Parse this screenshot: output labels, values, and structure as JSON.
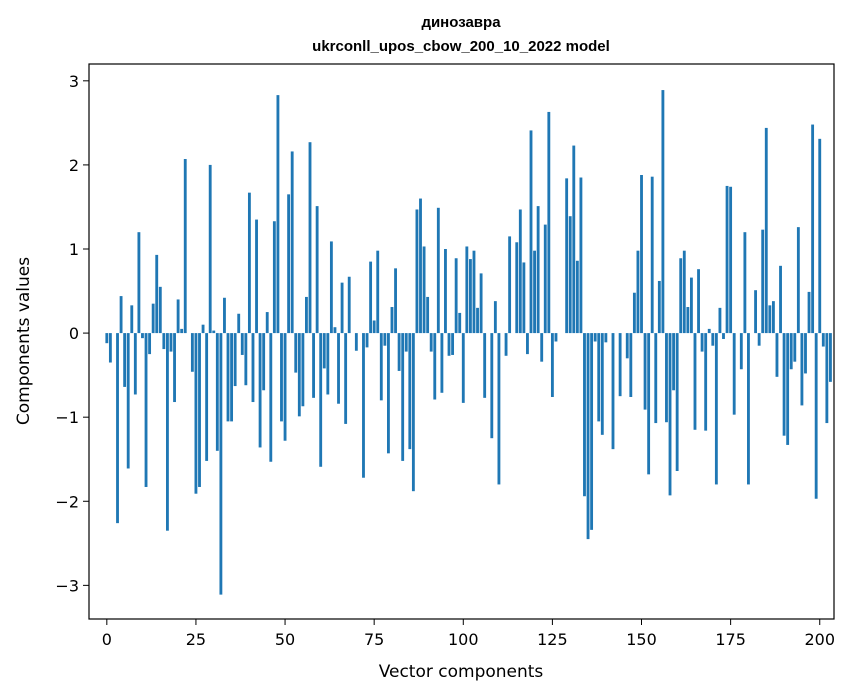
{
  "chart_data": {
    "type": "bar",
    "title": "динозавра",
    "subtitle": "ukrconll_upos_cbow_200_10_2022 model",
    "xlabel": "Vector components",
    "ylabel": "Components values",
    "xlim": [
      -5,
      204
    ],
    "ylim": [
      -3.4,
      3.2
    ],
    "xticks": [
      0,
      25,
      50,
      75,
      100,
      125,
      150,
      175,
      200
    ],
    "yticks": [
      -3,
      -2,
      -1,
      0,
      1,
      2,
      3
    ],
    "xtick_labels": [
      "0",
      "25",
      "50",
      "75",
      "100",
      "125",
      "150",
      "175",
      "200"
    ],
    "ytick_labels": [
      "−3",
      "−2",
      "−1",
      "0",
      "1",
      "2",
      "3"
    ],
    "grid": false,
    "bar_color": "#1f77b4",
    "values": [
      -0.12,
      -0.35,
      0.0,
      -2.26,
      0.44,
      -0.64,
      -1.61,
      0.33,
      -0.73,
      1.2,
      -0.06,
      -1.83,
      -0.25,
      0.35,
      0.93,
      0.55,
      -0.19,
      -2.35,
      -0.22,
      -0.82,
      0.4,
      0.05,
      2.07,
      0.0,
      -0.46,
      -1.91,
      -1.83,
      0.1,
      -1.52,
      2.0,
      0.03,
      -1.4,
      -3.11,
      0.42,
      -1.05,
      -1.05,
      -0.63,
      0.23,
      -0.26,
      -0.62,
      1.67,
      -0.82,
      1.35,
      -1.36,
      -0.68,
      0.25,
      -1.53,
      1.33,
      2.83,
      -1.05,
      -1.28,
      1.65,
      2.16,
      -0.47,
      -0.99,
      -0.87,
      0.43,
      2.27,
      -0.77,
      1.51,
      -1.59,
      -0.42,
      -0.73,
      1.09,
      0.07,
      -0.84,
      0.6,
      -1.08,
      0.67,
      0.0,
      -0.21,
      0.0,
      -1.72,
      -0.17,
      0.85,
      0.15,
      0.98,
      -0.8,
      -0.15,
      -1.43,
      0.31,
      0.77,
      -0.45,
      -1.52,
      -0.22,
      -1.38,
      -1.88,
      1.47,
      1.6,
      1.03,
      0.43,
      -0.22,
      -0.79,
      1.49,
      -0.71,
      1.0,
      -0.27,
      -0.26,
      0.89,
      0.24,
      -0.83,
      1.03,
      0.88,
      0.98,
      0.3,
      0.71,
      -0.77,
      0.0,
      -1.25,
      0.38,
      -1.8,
      0.0,
      -0.27,
      1.15,
      0.0,
      1.08,
      1.47,
      0.84,
      -0.25,
      2.41,
      0.98,
      1.51,
      -0.34,
      1.29,
      2.63,
      -0.76,
      -0.1,
      0.0,
      0.0,
      1.84,
      1.39,
      2.23,
      0.86,
      1.85,
      -1.94,
      -2.45,
      -2.34,
      -0.1,
      -1.05,
      -1.21,
      -0.11,
      0.0,
      -1.38,
      0.0,
      -0.75,
      0.0,
      -0.3,
      -0.76,
      0.48,
      0.98,
      1.88,
      -0.91,
      -1.68,
      1.86,
      -1.07,
      0.62,
      2.89,
      -1.06,
      -1.93,
      -0.68,
      -1.64,
      0.89,
      0.98,
      0.31,
      0.66,
      -1.15,
      0.76,
      -0.22,
      -1.16,
      0.05,
      -0.15,
      -1.8,
      0.3,
      -0.07,
      1.75,
      1.74,
      -0.97,
      0.0,
      -0.43,
      1.2,
      -1.8,
      0.0,
      0.51,
      -0.15,
      1.23,
      2.44,
      0.33,
      0.38,
      -0.52,
      0.8,
      -1.22,
      -1.33,
      -0.43,
      -0.34,
      1.26,
      -0.86,
      -0.48,
      0.49,
      2.48,
      -1.97,
      2.31,
      -0.16,
      -1.07,
      -0.58
    ]
  }
}
